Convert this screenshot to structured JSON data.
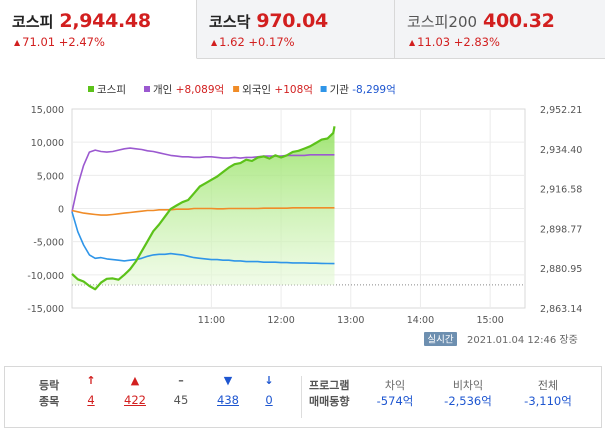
{
  "tabs": [
    {
      "name": "코스피",
      "value": "2,944.48",
      "change": "71.01",
      "change_pct": "+2.47%",
      "active": true
    },
    {
      "name": "코스닥",
      "value": "970.04",
      "change": "1.62",
      "change_pct": "+0.17%",
      "active": false
    },
    {
      "name": "코스피200",
      "value": "400.32",
      "change": "11.03",
      "change_pct": "+2.83%",
      "active": false
    }
  ],
  "colors": {
    "up": "#d21f1f",
    "down": "#1e56d0",
    "kospi": "#5cc21a",
    "individual": "#9b59d0",
    "foreign": "#f08c28",
    "institution": "#2f95e8"
  },
  "chart_data": {
    "type": "line",
    "legend": [
      {
        "name": "코스피",
        "value": ""
      },
      {
        "name": "개인",
        "value": "+8,089억"
      },
      {
        "name": "외국인",
        "value": "+108억"
      },
      {
        "name": "기관",
        "value": "-8,299억"
      }
    ],
    "x_ticks": [
      "11:00",
      "12:00",
      "13:00",
      "14:00",
      "15:00"
    ],
    "x_range": [
      "09:00",
      "15:30"
    ],
    "y_left_ticks": [
      "15,000",
      "10,000",
      "5,000",
      "0",
      "-5,000",
      "-10,000",
      "-15,000"
    ],
    "y_left_range": [
      -15000,
      15000
    ],
    "y_right_ticks": [
      "2,952.21",
      "2,934.40",
      "2,916.58",
      "2,898.77",
      "2,880.95",
      "2,863.14"
    ],
    "y_right_range": [
      2863.14,
      2952.21
    ],
    "reference_line": 2873.47,
    "x": [
      "09:00",
      "09:05",
      "09:10",
      "09:15",
      "09:20",
      "09:25",
      "09:30",
      "09:35",
      "09:40",
      "09:45",
      "09:50",
      "09:55",
      "10:00",
      "10:05",
      "10:10",
      "10:15",
      "10:20",
      "10:25",
      "10:30",
      "10:35",
      "10:40",
      "10:45",
      "10:50",
      "10:55",
      "11:00",
      "11:05",
      "11:10",
      "11:15",
      "11:20",
      "11:25",
      "11:30",
      "11:35",
      "11:40",
      "11:45",
      "11:50",
      "11:55",
      "12:00",
      "12:05",
      "12:10",
      "12:15",
      "12:20",
      "12:25",
      "12:30",
      "12:35",
      "12:40",
      "12:45",
      "12:46"
    ],
    "series": [
      {
        "name": "코스피",
        "axis": "right",
        "values": [
          2878.4,
          2876.0,
          2875.0,
          2873.0,
          2871.5,
          2874.5,
          2876.2,
          2876.4,
          2875.8,
          2878.0,
          2880.5,
          2884.0,
          2888.5,
          2893.0,
          2897.5,
          2900.5,
          2904.0,
          2907.5,
          2909.0,
          2910.5,
          2911.5,
          2914.5,
          2917.5,
          2919.0,
          2920.5,
          2922.0,
          2924.0,
          2926.0,
          2927.5,
          2928.0,
          2929.5,
          2929.0,
          2930.5,
          2931.0,
          2930.0,
          2931.5,
          2930.5,
          2931.5,
          2933.0,
          2933.5,
          2934.5,
          2935.5,
          2937.0,
          2938.5,
          2939.0,
          2941.5,
          2944.48
        ]
      },
      {
        "name": "개인",
        "axis": "left",
        "values": [
          -500,
          3500,
          6500,
          8500,
          8800,
          8600,
          8500,
          8600,
          8800,
          9000,
          9100,
          9000,
          8900,
          8700,
          8600,
          8400,
          8200,
          8000,
          7900,
          7800,
          7800,
          7700,
          7700,
          7800,
          7800,
          7700,
          7600,
          7600,
          7700,
          7600,
          7700,
          7700,
          7800,
          7900,
          7900,
          7900,
          7900,
          8000,
          8000,
          8000,
          8000,
          8100,
          8100,
          8100,
          8100,
          8100,
          8089
        ]
      },
      {
        "name": "외국인",
        "axis": "left",
        "values": [
          -300,
          -500,
          -700,
          -800,
          -900,
          -1000,
          -1000,
          -900,
          -800,
          -700,
          -600,
          -500,
          -400,
          -300,
          -300,
          -200,
          -200,
          -200,
          -100,
          -100,
          -100,
          0,
          0,
          0,
          0,
          -50,
          -50,
          0,
          0,
          0,
          0,
          0,
          0,
          50,
          50,
          50,
          50,
          50,
          100,
          100,
          100,
          100,
          100,
          100,
          100,
          100,
          108
        ]
      },
      {
        "name": "기관",
        "axis": "left",
        "values": [
          -500,
          -3500,
          -5500,
          -7000,
          -7500,
          -7400,
          -7600,
          -7700,
          -7800,
          -7900,
          -7800,
          -7700,
          -7500,
          -7200,
          -7000,
          -6900,
          -6900,
          -6800,
          -6900,
          -7000,
          -7200,
          -7400,
          -7500,
          -7600,
          -7700,
          -7700,
          -7800,
          -7800,
          -7900,
          -7900,
          -8000,
          -8000,
          -8000,
          -8100,
          -8100,
          -8100,
          -8150,
          -8150,
          -8200,
          -8200,
          -8200,
          -8250,
          -8250,
          -8280,
          -8290,
          -8300,
          -8299
        ]
      }
    ],
    "realtime_label": "실시간",
    "timestamp": "2021.01.04 12:46",
    "status": "장중"
  },
  "bottom": {
    "label1": "등락",
    "label2": "종목",
    "counts": [
      {
        "icon": "↑",
        "value": "4",
        "kind": "up",
        "link": true
      },
      {
        "icon": "▲",
        "value": "422",
        "kind": "up",
        "link": true
      },
      {
        "icon": "–",
        "value": "45",
        "kind": "flat",
        "link": false
      },
      {
        "icon": "▼",
        "value": "438",
        "kind": "down",
        "link": true
      },
      {
        "icon": "↓",
        "value": "0",
        "kind": "down",
        "link": true
      }
    ],
    "program_label1": "프로그램",
    "program_label2": "매매동향",
    "program": [
      {
        "label": "차익",
        "value": "-574억"
      },
      {
        "label": "비차익",
        "value": "-2,536억"
      },
      {
        "label": "전체",
        "value": "-3,110억"
      }
    ]
  }
}
